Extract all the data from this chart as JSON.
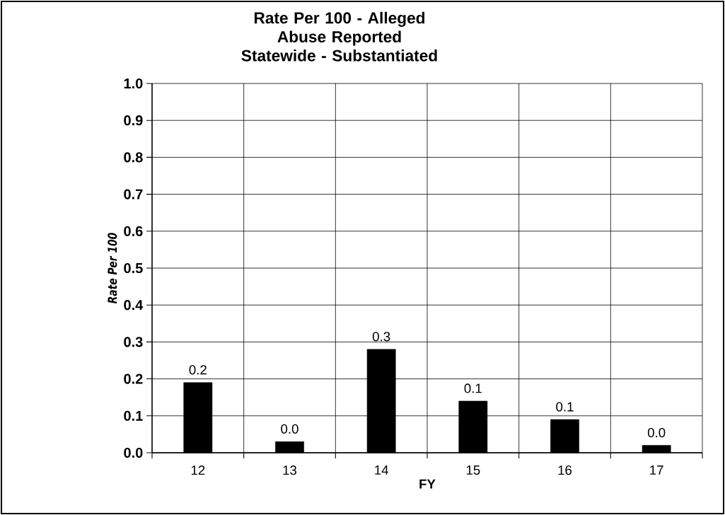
{
  "chart_data": {
    "type": "bar",
    "title": "Rate Per 100 - Alleged Abuse Reported Statewide - Substantiated",
    "xlabel": "FY",
    "ylabel": "Rate Per 100",
    "categories": [
      "12",
      "13",
      "14",
      "15",
      "16",
      "17"
    ],
    "values": [
      0.19,
      0.03,
      0.28,
      0.14,
      0.09,
      0.02
    ],
    "value_labels": [
      "0.2",
      "0.0",
      "0.3",
      "0.1",
      "0.1",
      "0.0"
    ],
    "color": "#000000",
    "ylim": [
      0,
      1.0
    ],
    "yticks": [
      {
        "value": 0,
        "label": "0.0"
      },
      0.1,
      0.2,
      0.3,
      0.4,
      0.5,
      0.6,
      0.7,
      0.8,
      0.9,
      {
        "value": 1.0,
        "label": "1.0"
      }
    ],
    "grid": true
  }
}
